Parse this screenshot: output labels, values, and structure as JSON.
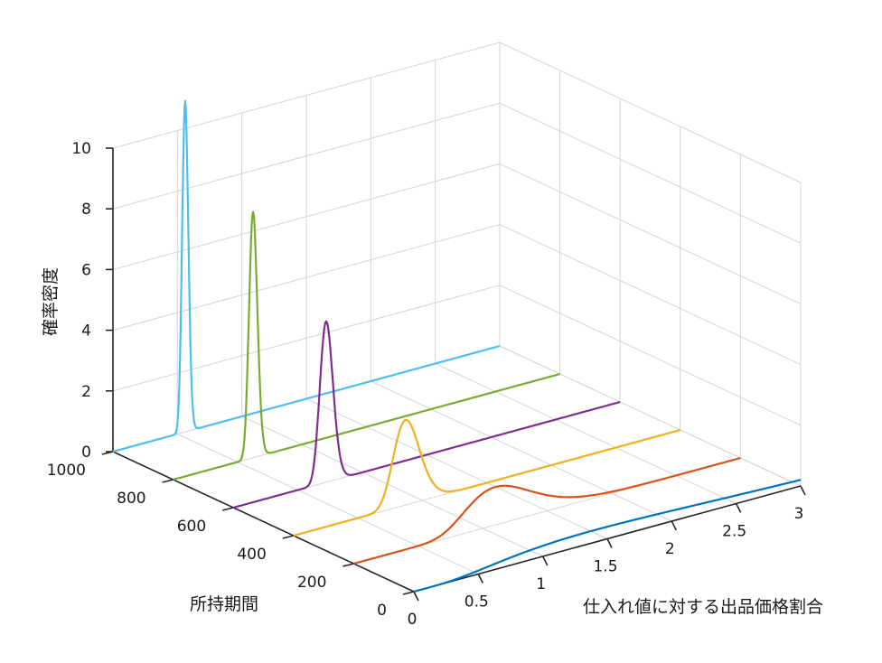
{
  "chart_data": {
    "type": "line",
    "x_axis": {
      "label": "仕入れ値に対する出品価格割合",
      "range": [
        0,
        3
      ],
      "ticks": [
        "0",
        "0.5",
        "1",
        "1.5",
        "2",
        "2.5",
        "3"
      ]
    },
    "y_axis": {
      "label": "所持期間",
      "range": [
        0,
        1000
      ],
      "ticks": [
        "0",
        "200",
        "400",
        "600",
        "800",
        "1000"
      ]
    },
    "z_axis": {
      "label": "確率密度",
      "range": [
        0,
        10
      ],
      "ticks": [
        "0",
        "2",
        "4",
        "6",
        "8",
        "10"
      ]
    },
    "grid": true,
    "series": [
      {
        "holding_period": 1000,
        "peak_x": 0.56,
        "peak_density": 10.9,
        "color": "#4DBEEE"
      },
      {
        "holding_period": 800,
        "peak_x": 0.62,
        "peak_density": 8.1,
        "color": "#77AC30"
      },
      {
        "holding_period": 600,
        "peak_x": 0.72,
        "peak_density": 5.3,
        "color": "#7E2F8E"
      },
      {
        "holding_period": 400,
        "peak_x": 0.87,
        "peak_density": 2.8,
        "color": "#EDB120"
      },
      {
        "holding_period": 200,
        "peak_x": 1.1,
        "peak_density": 1.25,
        "color": "#D95319"
      },
      {
        "holding_period": 0,
        "peak_x": 1.4,
        "peak_density": 0.4,
        "color": "#0072BD"
      }
    ]
  }
}
